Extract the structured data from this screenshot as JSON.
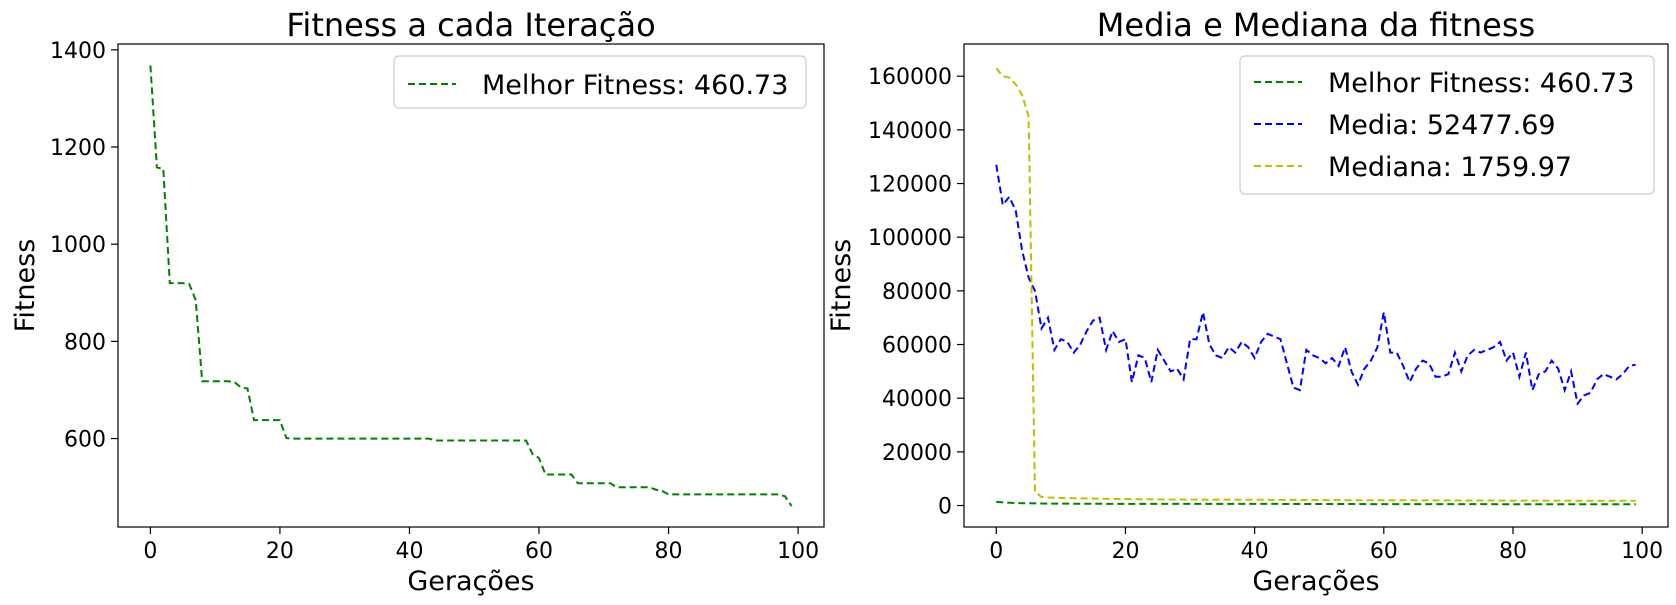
{
  "chart_data": [
    {
      "type": "line",
      "title": "Fitness a cada Iteração",
      "xlabel": "Gerações",
      "ylabel": "Fitness",
      "xlim": [
        -5,
        104
      ],
      "ylim": [
        418,
        1412
      ],
      "xticks": [
        0,
        20,
        40,
        60,
        80,
        100
      ],
      "yticks": [
        600,
        800,
        1000,
        1200,
        1400
      ],
      "grid": false,
      "legend_position": "top-right",
      "series": [
        {
          "name": "Melhor Fitness: 460.73",
          "color": "#008000",
          "style": "dashed",
          "x": [
            0,
            1,
            2,
            3,
            4,
            5,
            6,
            7,
            8,
            9,
            10,
            11,
            12,
            13,
            14,
            15,
            16,
            17,
            18,
            19,
            20,
            21,
            22,
            23,
            24,
            25,
            26,
            27,
            28,
            29,
            30,
            31,
            32,
            33,
            34,
            35,
            36,
            37,
            38,
            39,
            40,
            41,
            42,
            43,
            44,
            45,
            46,
            47,
            48,
            49,
            50,
            51,
            52,
            53,
            54,
            55,
            56,
            57,
            58,
            59,
            60,
            61,
            62,
            63,
            64,
            65,
            66,
            67,
            68,
            69,
            70,
            71,
            72,
            73,
            74,
            75,
            76,
            77,
            78,
            79,
            80,
            81,
            82,
            83,
            84,
            85,
            86,
            87,
            88,
            89,
            90,
            91,
            92,
            93,
            94,
            95,
            96,
            97,
            98,
            99
          ],
          "y": [
            1368,
            1158,
            1155,
            920,
            920,
            920,
            918,
            885,
            718,
            718,
            718,
            718,
            718,
            716,
            705,
            703,
            638,
            638,
            638,
            638,
            638,
            601,
            600,
            600,
            600,
            600,
            600,
            600,
            600,
            600,
            600,
            600,
            600,
            600,
            600,
            600,
            600,
            600,
            600,
            600,
            600,
            600,
            600,
            600,
            596,
            596,
            596,
            596,
            596,
            596,
            596,
            596,
            596,
            596,
            596,
            596,
            596,
            596,
            596,
            568,
            560,
            526,
            526,
            526,
            526,
            526,
            508,
            508,
            508,
            508,
            508,
            508,
            500,
            500,
            500,
            500,
            500,
            500,
            495,
            492,
            485,
            485,
            485,
            485,
            485,
            485,
            485,
            485,
            485,
            485,
            485,
            485,
            485,
            485,
            485,
            485,
            485,
            485,
            481,
            461
          ]
        }
      ]
    },
    {
      "type": "line",
      "title": "Media e Mediana da fitness",
      "xlabel": "Gerações",
      "ylabel": "Fitness",
      "xlim": [
        -5,
        104
      ],
      "ylim": [
        -8000,
        172000
      ],
      "xticks": [
        0,
        20,
        40,
        60,
        80,
        100
      ],
      "yticks": [
        0,
        20000,
        40000,
        60000,
        80000,
        100000,
        120000,
        140000,
        160000
      ],
      "grid": false,
      "legend_position": "top-right",
      "series": [
        {
          "name": "Melhor Fitness: 460.73",
          "color": "#008000",
          "style": "dashed",
          "x": [
            0,
            3,
            8,
            20,
            40,
            60,
            80,
            99
          ],
          "y": [
            1368,
            920,
            718,
            600,
            600,
            526,
            485,
            461
          ]
        },
        {
          "name": "Media: 52477.69",
          "color": "#0000ff",
          "style": "dashed",
          "x": [
            0,
            1,
            2,
            3,
            4,
            5,
            6,
            7,
            8,
            9,
            10,
            11,
            12,
            13,
            14,
            15,
            16,
            17,
            18,
            19,
            20,
            21,
            22,
            23,
            24,
            25,
            26,
            27,
            28,
            29,
            30,
            31,
            32,
            33,
            34,
            35,
            36,
            37,
            38,
            39,
            40,
            41,
            42,
            43,
            44,
            45,
            46,
            47,
            48,
            49,
            50,
            51,
            52,
            53,
            54,
            55,
            56,
            57,
            58,
            59,
            60,
            61,
            62,
            63,
            64,
            65,
            66,
            67,
            68,
            69,
            70,
            71,
            72,
            73,
            74,
            75,
            76,
            77,
            78,
            79,
            80,
            81,
            82,
            83,
            84,
            85,
            86,
            87,
            88,
            89,
            90,
            91,
            92,
            93,
            94,
            95,
            96,
            97,
            98,
            99
          ],
          "y": [
            127000,
            112000,
            115000,
            110000,
            95000,
            85000,
            80000,
            66000,
            70000,
            58000,
            62000,
            61000,
            57000,
            60000,
            65000,
            69000,
            70000,
            58000,
            65000,
            61000,
            62000,
            46000,
            56000,
            55000,
            46000,
            58000,
            54000,
            50000,
            51000,
            47000,
            62000,
            62000,
            72000,
            60000,
            56000,
            55000,
            59000,
            57000,
            61000,
            59000,
            55000,
            61000,
            64000,
            63000,
            62000,
            53000,
            44000,
            43000,
            58000,
            56000,
            55000,
            53000,
            55000,
            52000,
            59000,
            50000,
            45000,
            51000,
            54000,
            59000,
            72000,
            57000,
            57000,
            52000,
            46000,
            51000,
            54000,
            53000,
            48000,
            48000,
            49000,
            57000,
            50000,
            56000,
            58000,
            57000,
            58000,
            59000,
            61000,
            54000,
            57000,
            48000,
            57000,
            43000,
            49000,
            50000,
            54000,
            51000,
            43000,
            50000,
            38000,
            41000,
            42000,
            47000,
            49000,
            48000,
            47000,
            49000,
            52000,
            52500
          ]
        },
        {
          "name": "Mediana: 1759.97",
          "color": "#bfbf00",
          "style": "dashed",
          "x": [
            0,
            1,
            2,
            3,
            4,
            5,
            6,
            7,
            8,
            10,
            15,
            20,
            25,
            30,
            35,
            40,
            45,
            50,
            55,
            60,
            65,
            70,
            75,
            80,
            85,
            90,
            95,
            99
          ],
          "y": [
            163000,
            160000,
            159500,
            157000,
            153000,
            145000,
            5000,
            3200,
            3000,
            2800,
            2600,
            2400,
            2300,
            2200,
            2200,
            2150,
            2100,
            2050,
            2000,
            1980,
            1950,
            1900,
            1880,
            1850,
            1820,
            1800,
            1780,
            1760
          ]
        }
      ]
    }
  ]
}
